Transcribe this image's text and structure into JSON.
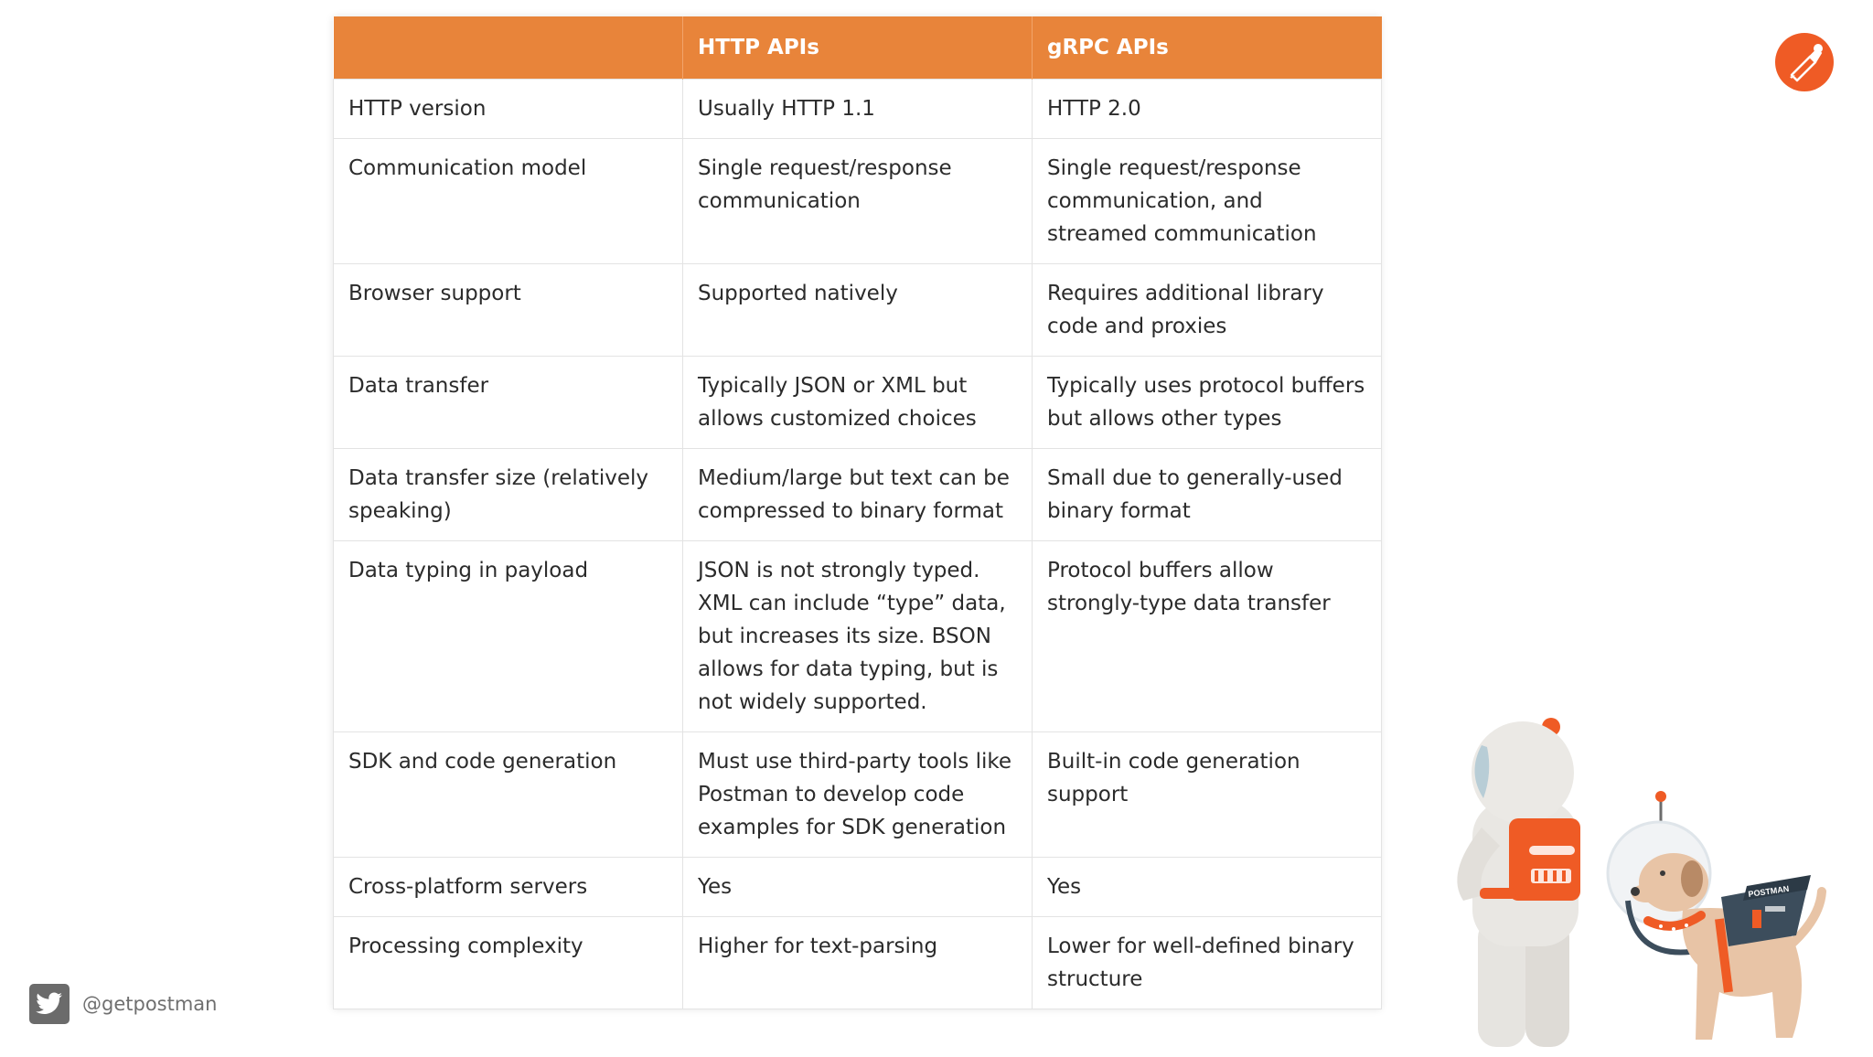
{
  "table": {
    "headers": [
      "",
      "HTTP APIs",
      "gRPC APIs"
    ],
    "rows": [
      {
        "feature": "HTTP version",
        "http": "Usually HTTP 1.1",
        "grpc": "HTTP 2.0"
      },
      {
        "feature": "Communication model",
        "http": "Single request/response communication",
        "grpc": "Single request/response communication, and streamed communication"
      },
      {
        "feature": "Browser support",
        "http": "Supported natively",
        "grpc": "Requires additional library code and proxies"
      },
      {
        "feature": "Data transfer",
        "http": "Typically JSON or XML but allows customized choices",
        "grpc": "Typically uses protocol buffers but allows other types"
      },
      {
        "feature": "Data transfer size (relatively speaking)",
        "http": "Medium/large but text can be compressed to binary format",
        "grpc": "Small due to generally-used binary format"
      },
      {
        "feature": "Data typing in payload",
        "http": "JSON is not strongly typed. XML can include “type” data, but increases its size. BSON allows for data typing, but is not widely supported.",
        "grpc": "Protocol buffers allow strongly-type data transfer"
      },
      {
        "feature": "SDK and code generation",
        "http": "Must use third-party tools like Postman to develop code examples for SDK generation",
        "grpc": "Built-in code generation support"
      },
      {
        "feature": "Cross-platform servers",
        "http": "Yes",
        "grpc": "Yes"
      },
      {
        "feature": "Processing complexity",
        "http": "Higher for text-parsing",
        "grpc": "Lower for well-defined binary structure"
      }
    ]
  },
  "footer": {
    "handle": "@getpostman",
    "icon": "twitter-icon"
  },
  "branding": {
    "logo": "postman-logo",
    "accent": "#e8843a",
    "logo_color": "#ef5b25",
    "backpack_label": "POSTMAN"
  }
}
